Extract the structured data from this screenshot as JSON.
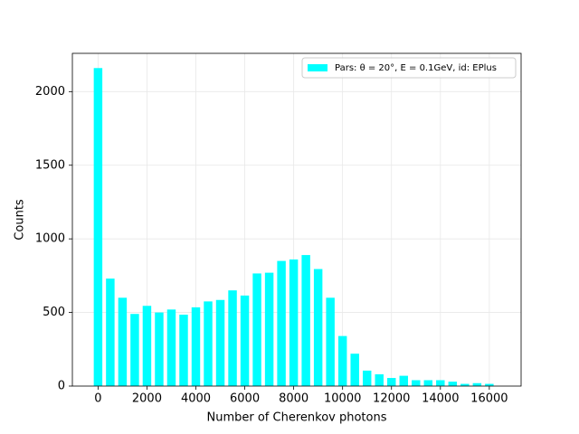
{
  "chart_data": {
    "type": "histogram",
    "xlabel": "Number of Cherenkov photons",
    "ylabel": "Counts",
    "bins": [
      -250,
      250,
      750,
      1250,
      1750,
      2250,
      2750,
      3250,
      3750,
      4250,
      4750,
      5250,
      5750,
      6250,
      6750,
      7250,
      7750,
      8250,
      8750,
      9250,
      9750,
      10250,
      10750,
      11250,
      11750,
      12250,
      12750,
      13250,
      13750,
      14250,
      14750,
      15250,
      15750,
      16250
    ],
    "series": [
      {
        "name": "Pars: θ = 20°, E = 0.1GeV, id: EPlus",
        "color": "#00ffff",
        "values": [
          2160,
          730,
          600,
          490,
          545,
          500,
          520,
          485,
          535,
          575,
          585,
          650,
          615,
          765,
          770,
          850,
          860,
          890,
          795,
          600,
          340,
          220,
          105,
          80,
          55,
          70,
          40,
          40,
          40,
          30,
          15,
          20,
          15
        ]
      }
    ],
    "xlim": [
      -1050,
      17300
    ],
    "ylim": [
      0,
      2260
    ],
    "xticks": [
      0,
      2000,
      4000,
      6000,
      8000,
      10000,
      12000,
      14000,
      16000
    ],
    "yticks": [
      0,
      500,
      1000,
      1500,
      2000
    ],
    "grid": true,
    "legend": "upper right"
  }
}
